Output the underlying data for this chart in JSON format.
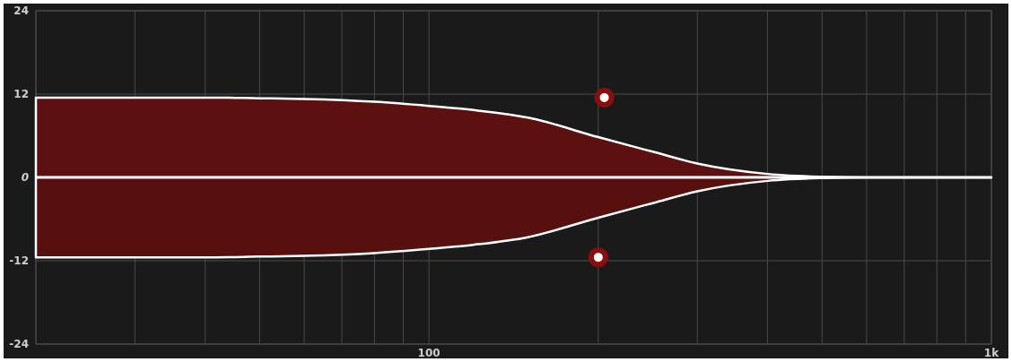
{
  "chart_data": {
    "type": "area",
    "x": [
      20,
      30,
      40,
      50,
      60,
      80,
      100,
      120,
      150,
      200,
      250,
      300,
      400,
      500,
      600,
      800,
      1000
    ],
    "series": [
      {
        "color": "#5c1010",
        "values": [
          11.5,
          11.5,
          11.5,
          11.4,
          11.3,
          10.9,
          10.3,
          9.7,
          8.6,
          5.8,
          3.7,
          2.0,
          0.5,
          0.1,
          0,
          0,
          0
        ]
      },
      {
        "color": "#58100f",
        "values": [
          -11.5,
          -11.5,
          -11.5,
          -11.4,
          -11.3,
          -10.9,
          -10.3,
          -9.7,
          -8.6,
          -5.8,
          -3.7,
          -2.0,
          -0.5,
          -0.1,
          0,
          0,
          0
        ]
      },
      {
        "type": "scatter",
        "color": "#8b0e0e",
        "marker": "circle",
        "x": [
          205,
          200
        ],
        "values": [
          11.5,
          -11.5
        ]
      }
    ],
    "log": "x",
    "xlim": [
      20,
      1000
    ],
    "xticks": [
      {
        "value": 20,
        "label": null
      },
      {
        "value": 30,
        "label": null
      },
      {
        "value": 40,
        "label": null
      },
      {
        "value": 50,
        "label": null
      },
      {
        "value": 60,
        "label": null
      },
      {
        "value": 70,
        "label": null
      },
      {
        "value": 80,
        "label": null
      },
      {
        "value": 90,
        "label": null
      },
      100,
      {
        "value": 200,
        "label": null
      },
      {
        "value": 300,
        "label": null
      },
      {
        "value": 400,
        "label": null
      },
      {
        "value": 500,
        "label": null
      },
      {
        "value": 600,
        "label": null
      },
      {
        "value": 700,
        "label": null
      },
      {
        "value": 800,
        "label": null
      },
      {
        "value": 900,
        "label": null
      },
      {
        "value": 1000,
        "label": "1k"
      }
    ],
    "ylim": [
      -24,
      24
    ],
    "yticks": [
      -24,
      -12,
      0,
      12,
      24
    ],
    "grid": true,
    "ref_lines": [
      {
        "axis": "y",
        "value": 0,
        "color": "#ffffff"
      }
    ]
  }
}
